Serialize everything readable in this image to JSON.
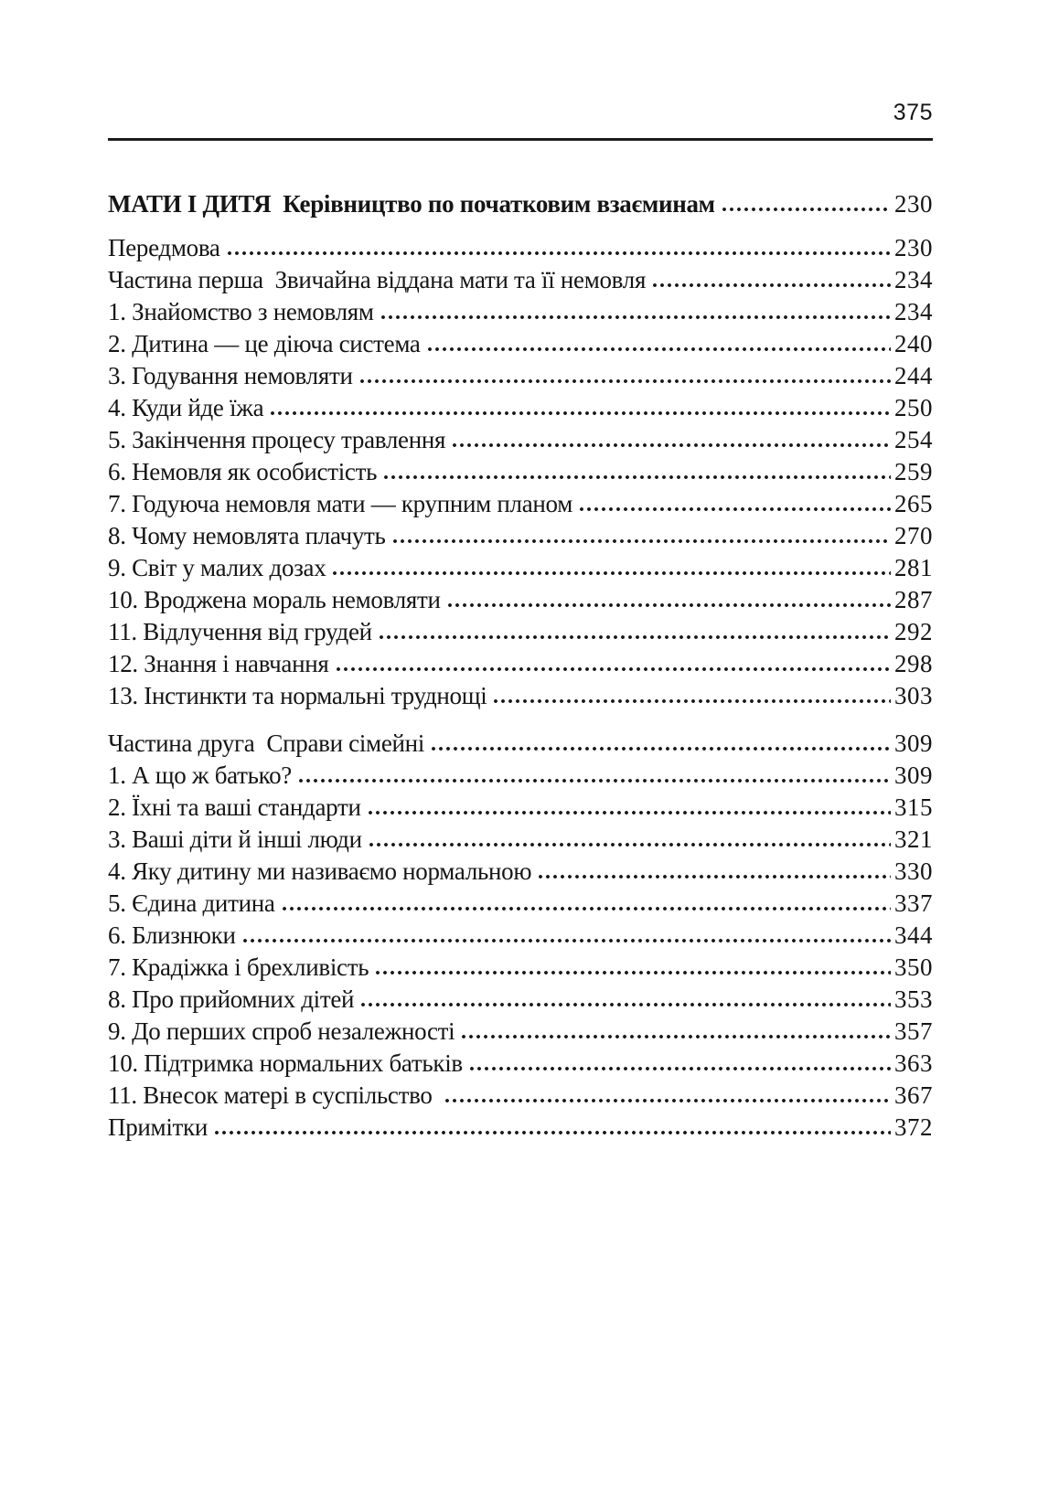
{
  "page_header": {
    "page_number": "375"
  },
  "toc": {
    "title": {
      "label": "МАТИ І ДИТЯ  Керівництво по початковим взаєминам",
      "page": "230"
    },
    "entries": [
      {
        "label": "Передмова",
        "page": "230"
      },
      {
        "label": "Частина перша  Звичайна віддана мати та її немовля",
        "page": "234"
      },
      {
        "label": "1. Знайомство з немовлям",
        "page": "234"
      },
      {
        "label": "2. Дитина — це діюча система",
        "page": "240"
      },
      {
        "label": "3. Годування немовляти",
        "page": "244"
      },
      {
        "label": "4. Куди йде їжа",
        "page": "250"
      },
      {
        "label": "5. Закінчення процесу травлення",
        "page": "254"
      },
      {
        "label": "6. Немовля як особистість",
        "page": "259"
      },
      {
        "label": "7. Годуюча немовля мати — крупним планом",
        "page": "265"
      },
      {
        "label": "8. Чому немовлята плачуть",
        "page": "270"
      },
      {
        "label": "9. Світ у малих дозах",
        "page": "281"
      },
      {
        "label": "10. Вроджена мораль немовляти",
        "page": "287"
      },
      {
        "label": "11. Відлучення від грудей",
        "page": "292"
      },
      {
        "label": "12. Знання і навчання",
        "page": "298"
      },
      {
        "label": "13. Інстинкти та нормальні труднощі",
        "page": "303"
      },
      {
        "label": "Частина друга  Справи сімейні",
        "page": "309",
        "gap_before": true
      },
      {
        "label": "1. А що ж батько?",
        "page": "309"
      },
      {
        "label": "2. Їхні та ваші стандарти",
        "page": "315"
      },
      {
        "label": "3. Ваші діти й інші люди",
        "page": "321"
      },
      {
        "label": "4. Яку дитину ми називаємо нормальною",
        "page": "330"
      },
      {
        "label": "5. Єдина дитина",
        "page": "337"
      },
      {
        "label": "6. Близнюки",
        "page": "344"
      },
      {
        "label": "7. Крадіжка і брехливість",
        "page": "350"
      },
      {
        "label": "8. Про прийомних дітей",
        "page": "353"
      },
      {
        "label": "9. До перших спроб незалежності",
        "page": "357"
      },
      {
        "label": "10. Підтримка нормальних батьків",
        "page": "363"
      },
      {
        "label": "11. Внесок матері в суспільство ",
        "page": "367"
      },
      {
        "label": "Примітки",
        "page": "372"
      }
    ]
  },
  "colors": {
    "text": "#151515",
    "rule": "#1c1c1c",
    "background": "#ffffff"
  }
}
